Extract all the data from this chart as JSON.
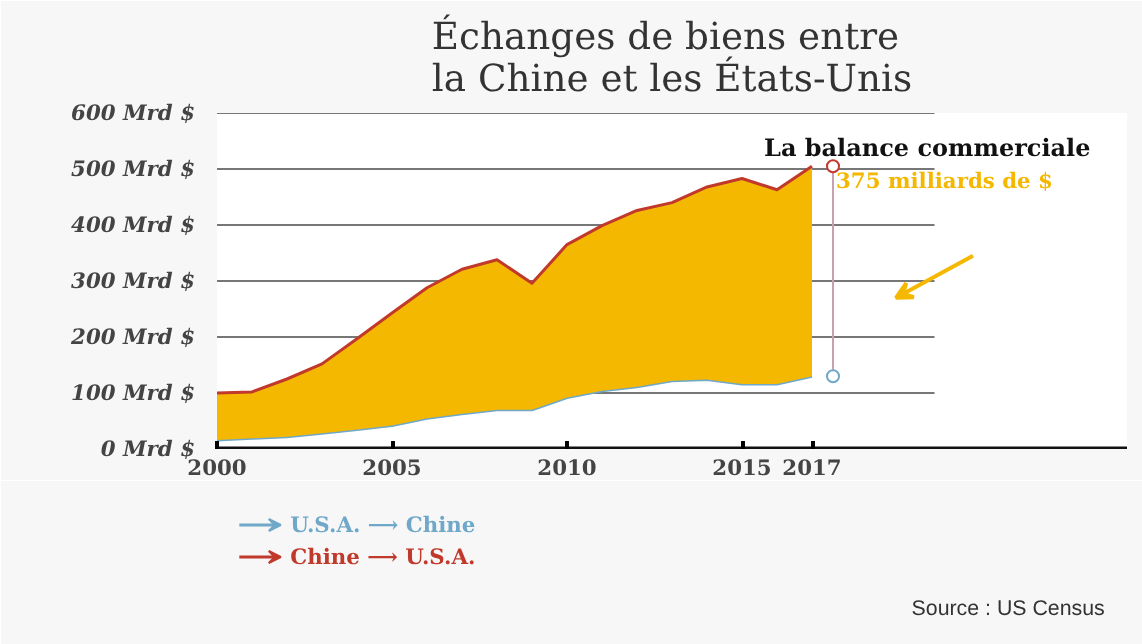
{
  "chart_data": {
    "type": "line",
    "title": "Échanges de biens entre\nla Chine et les États-Unis",
    "x": [
      2000,
      2001,
      2002,
      2003,
      2004,
      2005,
      2006,
      2007,
      2008,
      2009,
      2010,
      2011,
      2012,
      2013,
      2014,
      2015,
      2016,
      2017
    ],
    "series": [
      {
        "name": "U.S.A. ⟶ Chine",
        "color": "#6fa8c8",
        "values": [
          16,
          19,
          22,
          28,
          35,
          42,
          55,
          63,
          70,
          70,
          92,
          104,
          111,
          122,
          124,
          116,
          116,
          130
        ]
      },
      {
        "name": "Chine ⟶ U.S.A.",
        "type": "area",
        "color": "#c0392b",
        "values": [
          100,
          102,
          125,
          152,
          197,
          243,
          288,
          321,
          338,
          296,
          365,
          399,
          426,
          440,
          468,
          483,
          463,
          505
        ]
      }
    ],
    "xlim": [
      2000,
      2026
    ],
    "xticks": [
      2000,
      2005,
      2010,
      2015,
      2017
    ],
    "ylim": [
      0,
      600
    ],
    "yticks": [
      {
        "value": 0,
        "label": "0 Mrd $"
      },
      {
        "value": 100,
        "label": "100 Mrd $"
      },
      {
        "value": 200,
        "label": "200 Mrd $"
      },
      {
        "value": 300,
        "label": "300 Mrd $"
      },
      {
        "value": 400,
        "label": "400 Mrd $"
      },
      {
        "value": 500,
        "label": "500 Mrd $"
      },
      {
        "value": 600,
        "label": "600 Mrd $"
      }
    ],
    "grid": "y",
    "legend": "bottom left",
    "annotations": [
      {
        "text": "La balance commerciale",
        "x": 2017,
        "y": 505
      },
      "375 milliards de $",
      "Source : US Census"
    ]
  }
}
